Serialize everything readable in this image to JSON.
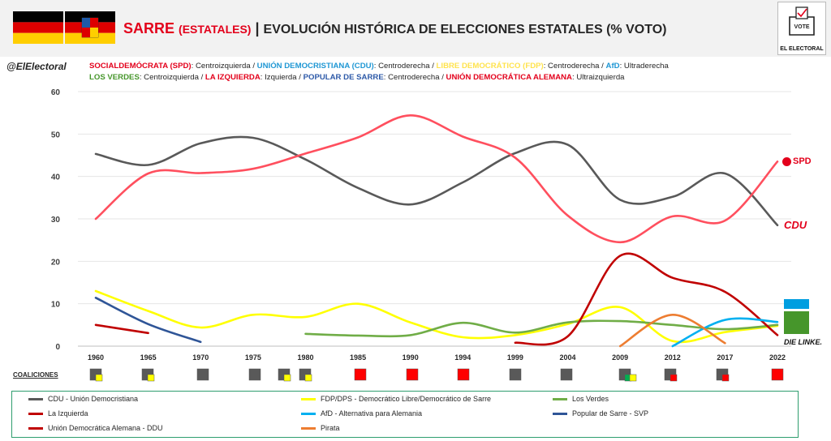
{
  "header": {
    "title_main": "SARRE",
    "title_sub": "(ESTATALES)",
    "title_sep": "|",
    "title_rest": "EVOLUCIÓN HISTÓRICA DE ELECCIONES ESTATALES (% VOTO)",
    "logo_label": "EL ELECTORAL",
    "logo_vote": "VOTE"
  },
  "handle": "@ElElectoral",
  "party_desc": {
    "line1": [
      {
        "name": "SOCIALDEMÓCRATA (SPD)",
        "desc": ": Centroizquierda / ",
        "color": "#e3001b"
      },
      {
        "name": "UNIÓN DEMOCRISTIANA (CDU)",
        "desc": ": Centroderecha / ",
        "color": "#1f97d4"
      },
      {
        "name": "LIBRE DEMOCRÁTICO (FDP)",
        "desc": ": Centroderecha / ",
        "color": "#ffe34d"
      },
      {
        "name": "AfD",
        "desc": ": Ultraderecha",
        "color": "#1f97d4"
      }
    ],
    "line2": [
      {
        "name": "LOS VERDES",
        "desc": ": Centroizquierda / ",
        "color": "#46962b"
      },
      {
        "name": "LA IZQUIERDA",
        "desc": ": Izquierda / ",
        "color": "#e3001b"
      },
      {
        "name": "POPULAR DE SARRE",
        "desc": ": Centroderecha / ",
        "color": "#2e5aa8"
      },
      {
        "name": "UNIÓN DEMOCRÁTICA ALEMANA",
        "desc": ": Ultraizquierda",
        "color": "#e3001b"
      }
    ]
  },
  "coalitions_label": "COALICIONES",
  "party_logos": {
    "spd": "SPD",
    "cdu": "CDU",
    "linke": "DIE LINKE."
  },
  "colors": {
    "cdu": "#595959",
    "spd": "#ff4f5e",
    "fdp": "#ffff00",
    "verdes": "#70ad47",
    "izquierda": "#c00000",
    "afd": "#00b0f0",
    "svp": "#2f5597",
    "ddu": "#c00000",
    "pirata": "#ed7d31"
  },
  "chart_data": {
    "type": "line",
    "categories": [
      "1960",
      "1965",
      "1970",
      "1975",
      "1980",
      "1985",
      "1990",
      "1994",
      "1999",
      "2004",
      "2009",
      "2012",
      "2017",
      "2022"
    ],
    "ylim": [
      0,
      60
    ],
    "yticks": [
      0,
      10,
      20,
      30,
      40,
      50,
      60
    ],
    "series": [
      {
        "key": "cdu",
        "name": "CDU - Unión Democristiana",
        "values": [
          45.3,
          42.7,
          47.8,
          49.1,
          44.0,
          37.3,
          33.4,
          38.6,
          45.5,
          47.5,
          34.5,
          35.2,
          40.7,
          28.5
        ]
      },
      {
        "key": "spd",
        "name": "SPD",
        "values": [
          30.0,
          40.7,
          40.8,
          41.8,
          45.4,
          49.2,
          54.4,
          49.4,
          44.4,
          30.8,
          24.5,
          30.6,
          29.6,
          43.5
        ]
      },
      {
        "key": "fdp",
        "name": "FDP/DPS - Democrático Libre/Democrático de Sarre",
        "values": [
          13.0,
          8.3,
          4.4,
          7.4,
          6.9,
          10.0,
          5.6,
          2.1,
          2.6,
          5.2,
          9.2,
          1.2,
          3.3,
          4.8
        ]
      },
      {
        "key": "verdes",
        "name": "Los Verdes",
        "values": [
          null,
          null,
          null,
          null,
          2.9,
          2.5,
          2.6,
          5.5,
          3.2,
          5.6,
          5.9,
          5.0,
          4.0,
          5.0
        ]
      },
      {
        "key": "izquierda",
        "name": "La Izquierda",
        "values": [
          null,
          null,
          null,
          null,
          null,
          null,
          null,
          null,
          0.8,
          2.3,
          21.3,
          16.1,
          12.8,
          2.6
        ]
      },
      {
        "key": "afd",
        "name": "AfD - Alternativa para Alemania",
        "values": [
          null,
          null,
          null,
          null,
          null,
          null,
          null,
          null,
          null,
          null,
          null,
          0.0,
          6.2,
          5.7
        ]
      },
      {
        "key": "svp",
        "name": "Popular de Sarre - SVP",
        "values": [
          11.4,
          5.2,
          1.0,
          null,
          null,
          null,
          null,
          null,
          null,
          null,
          null,
          null,
          null,
          null
        ]
      },
      {
        "key": "ddu",
        "name": "Unión Democrática Alemana - DDU",
        "values": [
          5.0,
          3.1,
          null,
          null,
          null,
          null,
          null,
          null,
          null,
          null,
          null,
          null,
          null,
          null
        ]
      },
      {
        "key": "pirata",
        "name": "Pirata",
        "values": [
          null,
          null,
          null,
          null,
          null,
          null,
          null,
          null,
          null,
          null,
          0.0,
          7.4,
          0.7,
          null
        ]
      }
    ],
    "coalitions": [
      [
        "cdu",
        "fdp"
      ],
      [
        "cdu",
        "fdp"
      ],
      [
        "cdu"
      ],
      [
        "cdu"
      ],
      [
        "cdu",
        "fdp"
      ],
      [
        "cdu",
        "fdp"
      ],
      [
        "spd"
      ],
      [
        "spd"
      ],
      [
        "spd"
      ],
      [
        "cdu"
      ],
      [
        "cdu"
      ],
      [
        "cdu",
        "verdes",
        "fdp"
      ],
      [
        "cdu",
        "spd"
      ],
      [
        "cdu",
        "spd"
      ],
      [
        "spd"
      ]
    ],
    "legend": "bottom"
  }
}
